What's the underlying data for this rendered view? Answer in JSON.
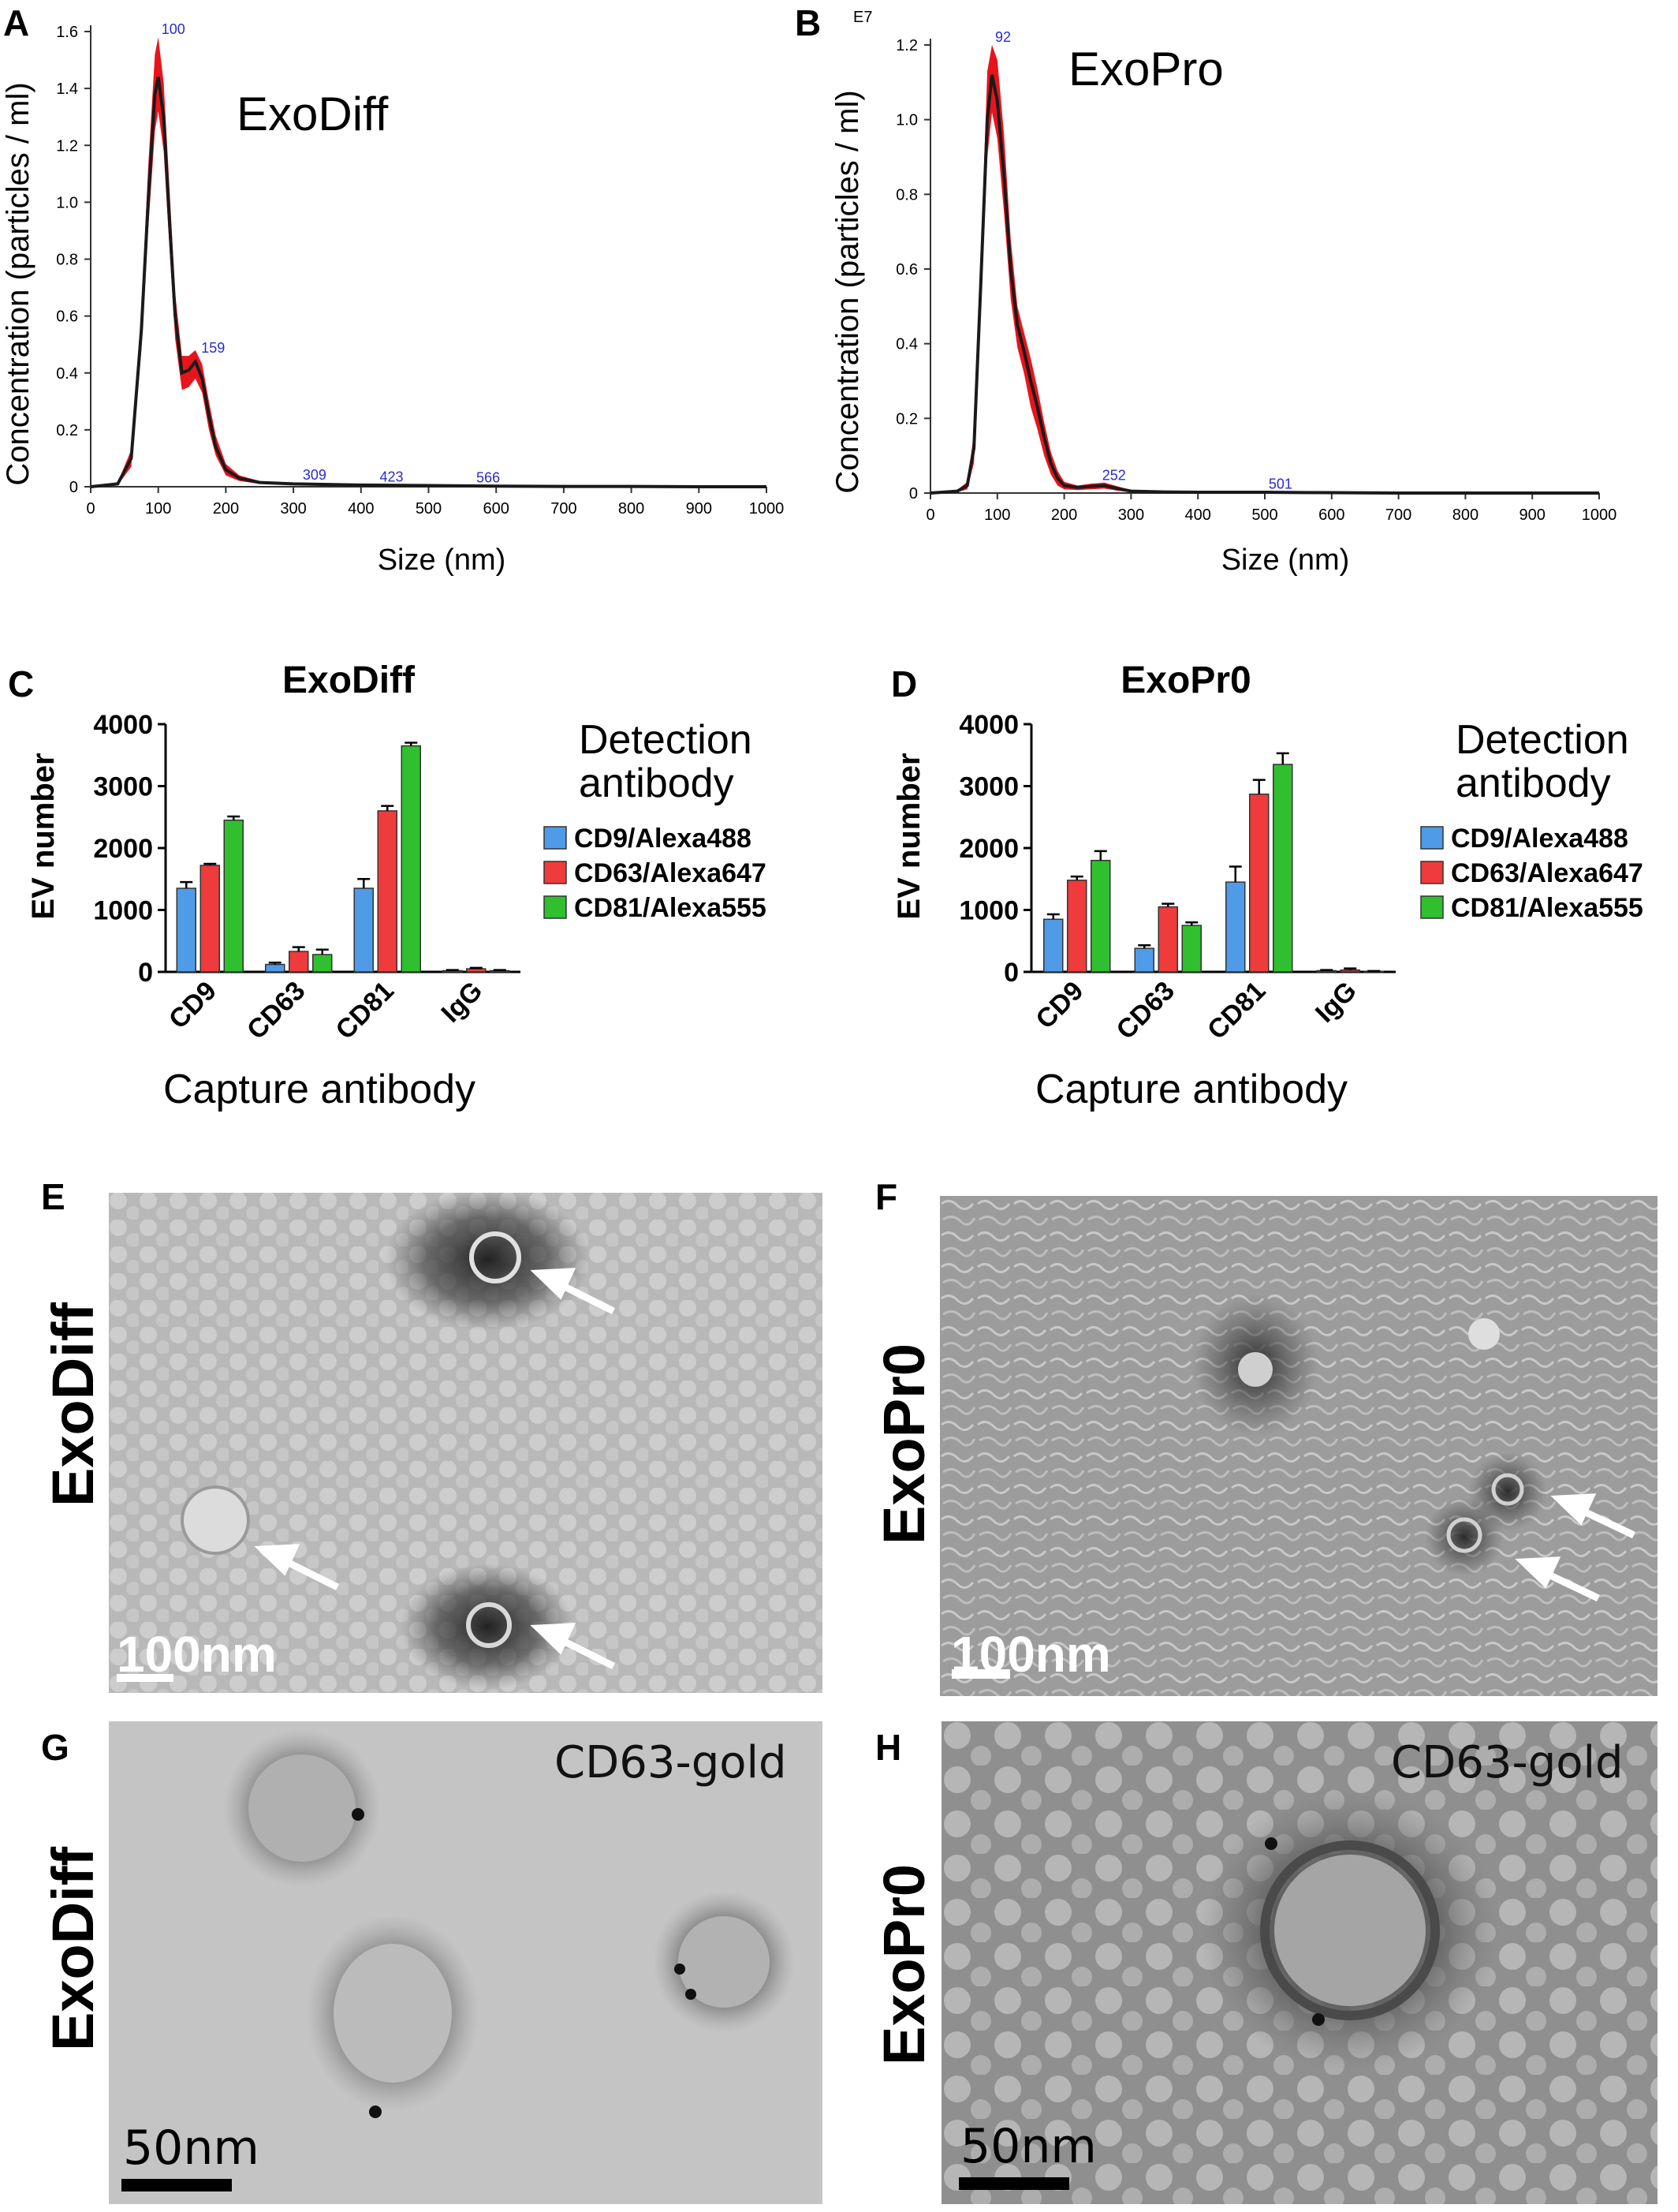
{
  "panels": {
    "A": "A",
    "B": "B",
    "C": "C",
    "D": "D",
    "E": "E",
    "F": "F",
    "G": "G",
    "H": "H"
  },
  "nta": {
    "A": {
      "title": "ExoDiff",
      "ylabel": "Concentration (particles / ml)",
      "xlabel": "Size (nm)",
      "yticks": [
        "0",
        "0.2",
        "0.4",
        "0.6",
        "0.8",
        "1.0",
        "1.2",
        "1.4",
        "1.6"
      ],
      "xticks": [
        "0",
        "100",
        "200",
        "300",
        "400",
        "500",
        "600",
        "700",
        "800",
        "900",
        "1000"
      ],
      "peak_labels": [
        "100",
        "159",
        "309",
        "423",
        "566"
      ]
    },
    "B": {
      "title": "ExoPro",
      "exponent": "E7",
      "ylabel": "Concentration (particles / ml)",
      "xlabel": "Size (nm)",
      "yticks": [
        "0",
        "0.2",
        "0.4",
        "0.6",
        "0.8",
        "1.0",
        "1.2"
      ],
      "xticks": [
        "0",
        "100",
        "200",
        "300",
        "400",
        "500",
        "600",
        "700",
        "800",
        "900",
        "1000"
      ],
      "peak_labels": [
        "92",
        "252",
        "501"
      ]
    }
  },
  "bars": {
    "C": {
      "title": "ExoDiff",
      "ylabel": "EV number",
      "xlabel": "Capture antibody",
      "yticks": [
        "0",
        "1000",
        "2000",
        "3000",
        "4000"
      ],
      "legend_title": [
        "Detection",
        "antibody"
      ],
      "legend": [
        "CD9/Alexa488",
        "CD63/Alexa647",
        "CD81/Alexa555"
      ]
    },
    "D": {
      "title": "ExoPr0",
      "ylabel": "EV number",
      "xlabel": "Capture antibody",
      "yticks": [
        "0",
        "1000",
        "2000",
        "3000",
        "4000"
      ],
      "legend_title": [
        "Detection",
        "antibody"
      ],
      "legend": [
        "CD9/Alexa488",
        "CD63/Alexa647",
        "CD81/Alexa555"
      ]
    }
  },
  "em": {
    "E": {
      "side_label": "ExoDiff",
      "scale": "100nm"
    },
    "F": {
      "side_label": "ExoPr0",
      "scale": "100nm"
    },
    "G": {
      "side_label": "ExoDiff",
      "scale": "50nm",
      "stain": "CD63-gold"
    },
    "H": {
      "side_label": "ExoPr0",
      "scale": "50nm",
      "stain": "CD63-gold"
    }
  },
  "colors": {
    "nta_band": "#e8141c",
    "nta_line": "#1a1a1a",
    "cd9": "#4f9be8",
    "cd63": "#ef3b3b",
    "cd81": "#2fbf2f",
    "peak_label": "#2a2ad0"
  },
  "chart_data": [
    {
      "type": "area",
      "panel": "A",
      "title": "ExoDiff",
      "xlabel": "Size (nm)",
      "ylabel": "Concentration (particles / ml)",
      "xlim": [
        0,
        1000
      ],
      "ylim": [
        0,
        1.6
      ],
      "grid": false,
      "series": [
        {
          "x": [
            0,
            40,
            60,
            75,
            85,
            95,
            100,
            108,
            115,
            125,
            135,
            145,
            155,
            165,
            175,
            185,
            200,
            220,
            250,
            300,
            350,
            400,
            500,
            600,
            700,
            800,
            900,
            1000
          ],
          "y": [
            0,
            0.01,
            0.1,
            0.55,
            1.0,
            1.38,
            1.44,
            1.3,
            1.0,
            0.6,
            0.4,
            0.41,
            0.44,
            0.38,
            0.25,
            0.14,
            0.06,
            0.03,
            0.015,
            0.01,
            0.008,
            0.006,
            0.004,
            0.002,
            0.001,
            0.001,
            0.0,
            0.0
          ],
          "upper": [
            0,
            0.015,
            0.13,
            0.62,
            1.12,
            1.52,
            1.58,
            1.42,
            1.12,
            0.68,
            0.46,
            0.46,
            0.48,
            0.43,
            0.3,
            0.18,
            0.08,
            0.04,
            0.02,
            0.014,
            0.01,
            0.008,
            0.006,
            0.003,
            0.002,
            0.001,
            0.001,
            0.0
          ],
          "lower": [
            0,
            0.005,
            0.07,
            0.48,
            0.9,
            1.25,
            1.32,
            1.18,
            0.9,
            0.52,
            0.34,
            0.35,
            0.38,
            0.33,
            0.2,
            0.11,
            0.04,
            0.02,
            0.01,
            0.006,
            0.005,
            0.004,
            0.002,
            0.001,
            0.0,
            0.0,
            0.0,
            0.0
          ]
        }
      ],
      "peak_labels": [
        {
          "x": 100,
          "label": "100"
        },
        {
          "x": 159,
          "label": "159"
        },
        {
          "x": 309,
          "label": "309"
        },
        {
          "x": 423,
          "label": "423"
        },
        {
          "x": 566,
          "label": "566"
        }
      ]
    },
    {
      "type": "area",
      "panel": "B",
      "title": "ExoPro",
      "xlabel": "Size (nm)",
      "ylabel": "Concentration (particles / ml)",
      "y_multiplier": "E7",
      "xlim": [
        0,
        1000
      ],
      "ylim": [
        0,
        1.2
      ],
      "grid": false,
      "series": [
        {
          "x": [
            0,
            40,
            55,
            65,
            75,
            85,
            92,
            100,
            110,
            120,
            130,
            140,
            150,
            160,
            170,
            180,
            190,
            200,
            220,
            240,
            260,
            280,
            300,
            350,
            400,
            500,
            600,
            700,
            800,
            900,
            1000
          ],
          "y": [
            0,
            0.005,
            0.02,
            0.12,
            0.55,
            1.0,
            1.12,
            1.05,
            0.85,
            0.6,
            0.45,
            0.38,
            0.3,
            0.23,
            0.15,
            0.08,
            0.04,
            0.02,
            0.015,
            0.018,
            0.02,
            0.012,
            0.005,
            0.003,
            0.002,
            0.002,
            0.001,
            0.0,
            0.0,
            0.0,
            0.0
          ],
          "upper": [
            0,
            0.008,
            0.03,
            0.16,
            0.62,
            1.13,
            1.2,
            1.16,
            0.96,
            0.68,
            0.5,
            0.43,
            0.36,
            0.28,
            0.19,
            0.11,
            0.06,
            0.03,
            0.02,
            0.025,
            0.028,
            0.018,
            0.008,
            0.005,
            0.003,
            0.003,
            0.002,
            0.001,
            0.0,
            0.0,
            0.0
          ],
          "lower": [
            0,
            0.002,
            0.01,
            0.08,
            0.48,
            0.9,
            1.02,
            0.95,
            0.75,
            0.52,
            0.39,
            0.32,
            0.23,
            0.17,
            0.1,
            0.05,
            0.02,
            0.01,
            0.008,
            0.01,
            0.012,
            0.006,
            0.002,
            0.001,
            0.001,
            0.001,
            0.0,
            0.0,
            0.0,
            0.0,
            0.0
          ]
        }
      ],
      "peak_labels": [
        {
          "x": 92,
          "label": "92"
        },
        {
          "x": 252,
          "label": "252"
        },
        {
          "x": 501,
          "label": "501"
        }
      ]
    },
    {
      "type": "bar",
      "panel": "C",
      "title": "ExoDiff",
      "xlabel": "Capture antibody",
      "ylabel": "EV number",
      "ylim": [
        0,
        4000
      ],
      "categories": [
        "CD9",
        "CD63",
        "CD81",
        "IgG"
      ],
      "legend_title": "Detection antibody",
      "legend_position": "right",
      "series": [
        {
          "name": "CD9/Alexa488",
          "values": [
            1350,
            120,
            1350,
            20
          ],
          "errors": [
            100,
            30,
            150,
            10
          ]
        },
        {
          "name": "CD63/Alexa647",
          "values": [
            1720,
            330,
            2600,
            50
          ],
          "errors": [
            25,
            70,
            80,
            15
          ]
        },
        {
          "name": "CD81/Alexa555",
          "values": [
            2450,
            280,
            3650,
            20
          ],
          "errors": [
            60,
            80,
            50,
            10
          ]
        }
      ]
    },
    {
      "type": "bar",
      "panel": "D",
      "title": "ExoPr0",
      "xlabel": "Capture antibody",
      "ylabel": "EV number",
      "ylim": [
        0,
        4000
      ],
      "categories": [
        "CD9",
        "CD63",
        "CD81",
        "IgG"
      ],
      "legend_title": "Detection antibody",
      "legend_position": "right",
      "series": [
        {
          "name": "CD9/Alexa488",
          "values": [
            850,
            380,
            1450,
            20
          ],
          "errors": [
            80,
            50,
            250,
            10
          ]
        },
        {
          "name": "CD63/Alexa647",
          "values": [
            1480,
            1050,
            2870,
            30
          ],
          "errors": [
            60,
            50,
            230,
            25
          ]
        },
        {
          "name": "CD81/Alexa555",
          "values": [
            1800,
            750,
            3350,
            10
          ],
          "errors": [
            150,
            50,
            180,
            5
          ]
        }
      ]
    }
  ]
}
